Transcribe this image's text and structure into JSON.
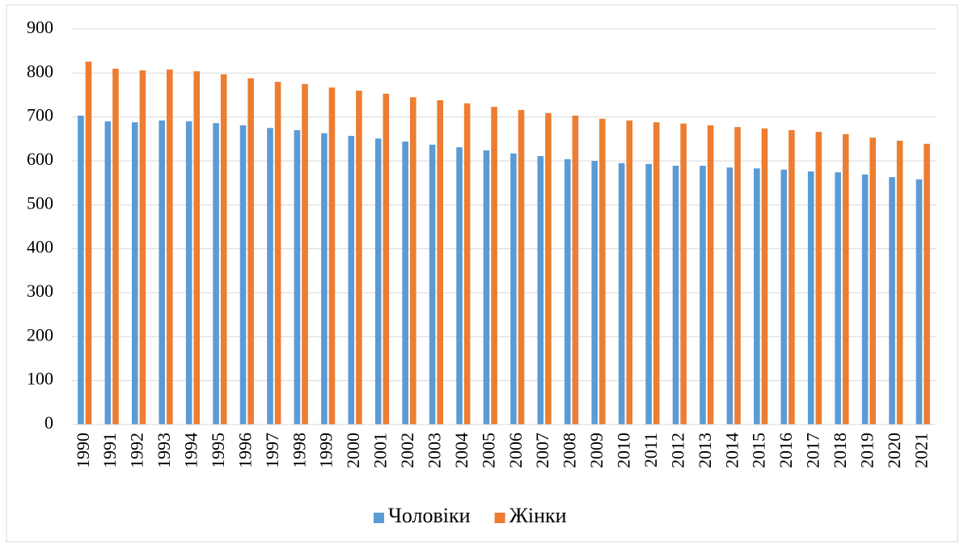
{
  "chart_data": {
    "type": "bar",
    "categories": [
      "1990",
      "1991",
      "1992",
      "1993",
      "1994",
      "1995",
      "1996",
      "1997",
      "1998",
      "1999",
      "2000",
      "2001",
      "2002",
      "2003",
      "2004",
      "2005",
      "2006",
      "2007",
      "2008",
      "2009",
      "2010",
      "2011",
      "2012",
      "2013",
      "2014",
      "2015",
      "2016",
      "2017",
      "2018",
      "2019",
      "2020",
      "2021"
    ],
    "series": [
      {
        "name": "Чоловіки",
        "color": "#5b9bd5",
        "values": [
          703,
          690,
          688,
          692,
          690,
          686,
          681,
          675,
          670,
          663,
          657,
          651,
          644,
          637,
          631,
          624,
          617,
          611,
          604,
          600,
          595,
          593,
          589,
          589,
          585,
          583,
          580,
          576,
          574,
          569,
          563,
          558
        ]
      },
      {
        "name": "Жінки",
        "color": "#ed7d31",
        "values": [
          826,
          810,
          806,
          808,
          804,
          797,
          788,
          780,
          775,
          767,
          760,
          753,
          745,
          738,
          731,
          723,
          716,
          709,
          703,
          696,
          692,
          688,
          685,
          681,
          677,
          674,
          670,
          666,
          661,
          653,
          646,
          639
        ]
      }
    ],
    "ylim": [
      0,
      900
    ],
    "yticks": [
      0,
      100,
      200,
      300,
      400,
      500,
      600,
      700,
      800,
      900
    ],
    "grid": true,
    "legend": "bottom"
  }
}
